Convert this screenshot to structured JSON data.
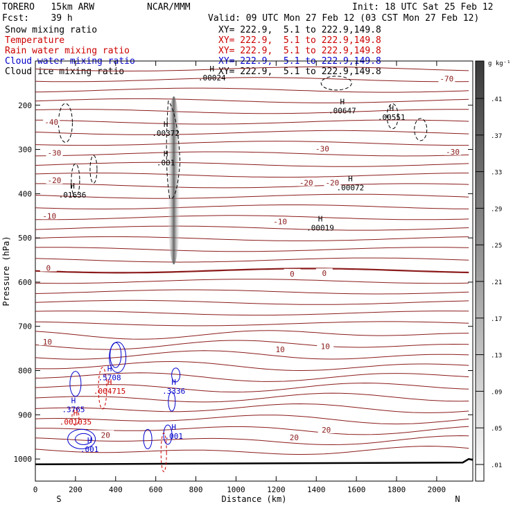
{
  "header": {
    "model": "TORERO   15km ARW",
    "center": "NCAR/MMM",
    "init": "Init: 18 UTC Sat 25 Feb 12",
    "fcst": "Fcst:    39 h",
    "valid": "Valid: 09 UTC Mon 27 Feb 12 (03 CST Mon 27 Feb 12)"
  },
  "legend": [
    {
      "name": "Snow mixing ratio",
      "xy": "XY= 222.9,  5.1 to 222.9,149.8",
      "color": "#000000"
    },
    {
      "name": "Temperature",
      "xy": "XY= 222.9,  5.1 to 222.9,149.8",
      "color": "#cc0000"
    },
    {
      "name": "Rain water mixing ratio",
      "xy": "XY= 222.9,  5.1 to 222.9,149.8",
      "color": "#cc0000"
    },
    {
      "name": "Cloud water mixing ratio",
      "xy": "XY= 222.9,  5.1 to 222.9,149.8",
      "color": "#0000cc"
    },
    {
      "name": "Cloud ice mixing ratio",
      "xy": "XY= 222.9,  5.1 to 222.9,149.8",
      "color": "#000000"
    }
  ],
  "chart_data": {
    "type": "cross-section contour",
    "xlabel": "Distance (km)",
    "ylabel": "Pressure (hPa)",
    "x_endpoints": [
      "S",
      "N"
    ],
    "xlim": [
      0,
      2180
    ],
    "ylim": [
      1050,
      100
    ],
    "x_ticks": [
      0,
      200,
      400,
      600,
      800,
      1000,
      1200,
      1400,
      1600,
      1800,
      2000
    ],
    "y_ticks": [
      200,
      300,
      400,
      500,
      600,
      700,
      800,
      900,
      1000
    ],
    "colorbar": {
      "unit": "g kg⁻¹",
      "ticks": [
        ".41",
        ".37",
        ".33",
        ".29",
        ".25",
        ".21",
        ".17",
        ".13",
        ".09",
        ".05",
        ".01"
      ]
    },
    "temperature_contours": {
      "color": "#8b1a1a",
      "labels": [
        {
          "text": "-70",
          "x": 2050,
          "p": 140
        },
        {
          "text": "-40",
          "x": 80,
          "p": 238
        },
        {
          "text": "-30",
          "x": 95,
          "p": 308
        },
        {
          "text": "-30",
          "x": 1430,
          "p": 298
        },
        {
          "text": "-30",
          "x": 2080,
          "p": 305
        },
        {
          "text": "-20",
          "x": 95,
          "p": 370
        },
        {
          "text": "-20",
          "x": 1350,
          "p": 375
        },
        {
          "text": "-20",
          "x": 1480,
          "p": 375
        },
        {
          "text": "-10",
          "x": 70,
          "p": 450
        },
        {
          "text": "-10",
          "x": 1220,
          "p": 463
        },
        {
          "text": "0",
          "x": 65,
          "p": 568
        },
        {
          "text": "0",
          "x": 1280,
          "p": 581
        },
        {
          "text": "0",
          "x": 1440,
          "p": 580
        },
        {
          "text": "10",
          "x": 60,
          "p": 735
        },
        {
          "text": "10",
          "x": 1220,
          "p": 752
        },
        {
          "text": "10",
          "x": 1445,
          "p": 745
        },
        {
          "text": "20",
          "x": 350,
          "p": 946
        },
        {
          "text": "20",
          "x": 1290,
          "p": 951
        },
        {
          "text": "20",
          "x": 1450,
          "p": 934
        }
      ]
    },
    "maxima": [
      {
        "text": ".00024",
        "x": 880,
        "p": 130,
        "color": "#000000"
      },
      {
        "text": ".00647",
        "x": 1530,
        "p": 204,
        "color": "#000000"
      },
      {
        "text": ".00551",
        "x": 1775,
        "p": 219,
        "color": "#000000"
      },
      {
        "text": ".00372",
        "x": 650,
        "p": 255,
        "color": "#000000"
      },
      {
        "text": ".001",
        "x": 650,
        "p": 322,
        "color": "#000000"
      },
      {
        "text": ".00072",
        "x": 1570,
        "p": 378,
        "color": "#000000"
      },
      {
        "text": ".01636",
        "x": 185,
        "p": 395,
        "color": "#000000"
      },
      {
        "text": ".00019",
        "x": 1420,
        "p": 469,
        "color": "#000000"
      },
      {
        "text": ".5708",
        "x": 370,
        "p": 808,
        "color": "#0000cc"
      },
      {
        "text": ".004715",
        "x": 370,
        "p": 838,
        "color": "#cc0000"
      },
      {
        "text": ".3336",
        "x": 690,
        "p": 838,
        "color": "#0000cc"
      },
      {
        "text": ".3765",
        "x": 190,
        "p": 880,
        "color": "#0000cc"
      },
      {
        "text": ".001035",
        "x": 200,
        "p": 908,
        "color": "#cc0000"
      },
      {
        "text": ".001",
        "x": 690,
        "p": 940,
        "color": "#0000cc"
      },
      {
        "text": ".001",
        "x": 270,
        "p": 970,
        "color": "#0000cc"
      }
    ],
    "snow_column": {
      "x": 690,
      "p_top": 180,
      "p_bottom": 560,
      "peak_p": 300
    }
  }
}
